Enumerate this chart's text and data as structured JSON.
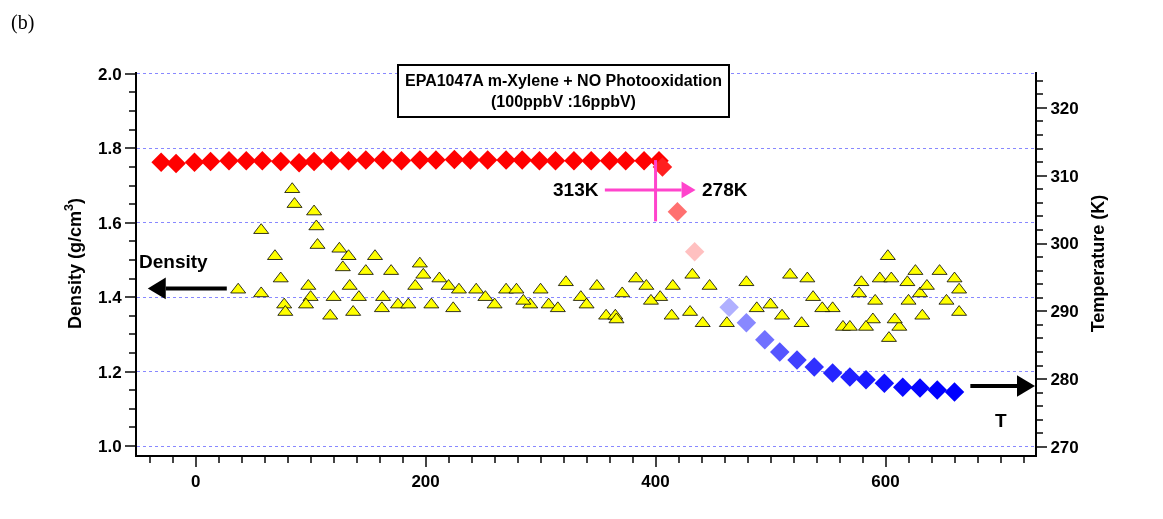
{
  "chart_data": {
    "type": "scatter",
    "title": "EPA1047A m-Xylene + NO Photooxidation",
    "subtitle": "(100ppbV :16ppbV)",
    "ylabel": "Density (g/cm$^{3}$)",
    "y2label": "Temperature (K)",
    "xlim": [
      -51,
      730
    ],
    "xticks": [
      0,
      200,
      400,
      600
    ],
    "ylim": [
      0.976,
      2.005
    ],
    "yticks": [
      {
        "value": 1.0,
        "label": "1.0"
      },
      {
        "value": 1.2,
        "label": "1.2"
      },
      {
        "value": 1.4,
        "label": "1.4"
      },
      {
        "value": 1.6,
        "label": "1.6"
      },
      {
        "value": 1.8,
        "label": "1.8"
      },
      {
        "value": 2.0,
        "label": "2.0"
      }
    ],
    "y2lim": [
      268.8,
      325.3
    ],
    "y2ticks": [
      270,
      280,
      290,
      300,
      310,
      320
    ],
    "grid": "y",
    "annotations": [
      "(b)",
      "Density",
      "T",
      "313K",
      "278K"
    ],
    "ref_lines": [
      {
        "axis": "x",
        "value": 400,
        "color": "#ff44cc"
      }
    ],
    "series": [
      {
        "marker": "triangle",
        "color": "#ffff00",
        "x": [
          37,
          57,
          57,
          69,
          74,
          77,
          78,
          84,
          86,
          103,
          105,
          106,
          98,
          100,
          96,
          117,
          120,
          125,
          133,
          128,
          134,
          142,
          137,
          156,
          148,
          163,
          162,
          170,
          176,
          185,
          195,
          198,
          191,
          205,
          212,
          220,
          224,
          229,
          244,
          260,
          270,
          279,
          291,
          300,
          307,
          322,
          335,
          349,
          357,
          365,
          371,
          383,
          392,
          404,
          414,
          366,
          415,
          432,
          447,
          441,
          462,
          479,
          488,
          517,
          532,
          537,
          527,
          510,
          554,
          563,
          569,
          579,
          577,
          589,
          583,
          595,
          602,
          605,
          603,
          612,
          608,
          619,
          626,
          630,
          636,
          632,
          647,
          653,
          660,
          664,
          664,
          620,
          591,
          252,
          285,
          315,
          340,
          396,
          430,
          500,
          545
        ],
        "values": [
          1.42,
          1.58,
          1.41,
          1.51,
          1.45,
          1.38,
          1.36,
          1.69,
          1.65,
          1.63,
          1.59,
          1.54,
          1.43,
          1.4,
          1.38,
          1.35,
          1.4,
          1.53,
          1.51,
          1.48,
          1.43,
          1.4,
          1.36,
          1.51,
          1.47,
          1.4,
          1.37,
          1.47,
          1.38,
          1.38,
          1.49,
          1.46,
          1.43,
          1.38,
          1.45,
          1.43,
          1.37,
          1.42,
          1.42,
          1.38,
          1.42,
          1.42,
          1.38,
          1.42,
          1.38,
          1.44,
          1.4,
          1.43,
          1.35,
          1.35,
          1.41,
          1.45,
          1.43,
          1.4,
          1.35,
          1.34,
          1.43,
          1.46,
          1.43,
          1.33,
          1.33,
          1.44,
          1.37,
          1.46,
          1.45,
          1.4,
          1.33,
          1.35,
          1.37,
          1.32,
          1.32,
          1.44,
          1.41,
          1.34,
          1.32,
          1.45,
          1.51,
          1.45,
          1.29,
          1.32,
          1.34,
          1.44,
          1.47,
          1.41,
          1.43,
          1.35,
          1.47,
          1.39,
          1.45,
          1.42,
          1.36,
          1.39,
          1.39,
          1.4,
          1.39,
          1.37,
          1.38,
          1.39,
          1.36,
          1.38,
          1.37
        ]
      },
      {
        "marker": "diamond",
        "axis": "y2",
        "x": [
          -30,
          -17,
          -1,
          13,
          29,
          44,
          58,
          74,
          90,
          103,
          118,
          133,
          148,
          163,
          179,
          195,
          209,
          225,
          239,
          254,
          270,
          284,
          299,
          313,
          329,
          344,
          360,
          374,
          390,
          403,
          406,
          419,
          434,
          464,
          479,
          495,
          508,
          523,
          538,
          554,
          569,
          583,
          599,
          615,
          630,
          645,
          660
        ],
        "values": [
          312,
          311.8,
          312,
          312.1,
          312.2,
          312.2,
          312.2,
          312.1,
          311.9,
          312.1,
          312.2,
          312.2,
          312.3,
          312.3,
          312.2,
          312.3,
          312.3,
          312.4,
          312.3,
          312.3,
          312.3,
          312.3,
          312.2,
          312.2,
          312.2,
          312.2,
          312.2,
          312.2,
          312.2,
          312.2,
          311.3,
          304.7,
          298.8,
          290.6,
          288.3,
          285.8,
          284,
          282.8,
          281.8,
          280.9,
          280.3,
          279.9,
          279.4,
          278.8,
          278.7,
          278.4,
          278.1
        ],
        "colors": [
          "#ff0000",
          "#ff0000",
          "#ff0000",
          "#ff0000",
          "#ff0000",
          "#ff0000",
          "#ff0000",
          "#ff0000",
          "#ff0000",
          "#ff0000",
          "#ff0000",
          "#ff0000",
          "#ff0000",
          "#ff0000",
          "#ff0000",
          "#ff0000",
          "#ff0000",
          "#ff0000",
          "#ff0000",
          "#ff0000",
          "#ff0000",
          "#ff0000",
          "#ff0000",
          "#ff0000",
          "#ff0000",
          "#ff0000",
          "#ff0000",
          "#ff0000",
          "#ff0000",
          "#ff0000",
          "#ff2020",
          "#ff7070",
          "#ffc0c0",
          "#b0b0ff",
          "#8888ff",
          "#7070ff",
          "#5555ff",
          "#4040ff",
          "#3030ff",
          "#2525ff",
          "#2020ff",
          "#1818ff",
          "#1010ff",
          "#0a0aff",
          "#0505ff",
          "#0000ff",
          "#0000ff"
        ]
      }
    ]
  }
}
